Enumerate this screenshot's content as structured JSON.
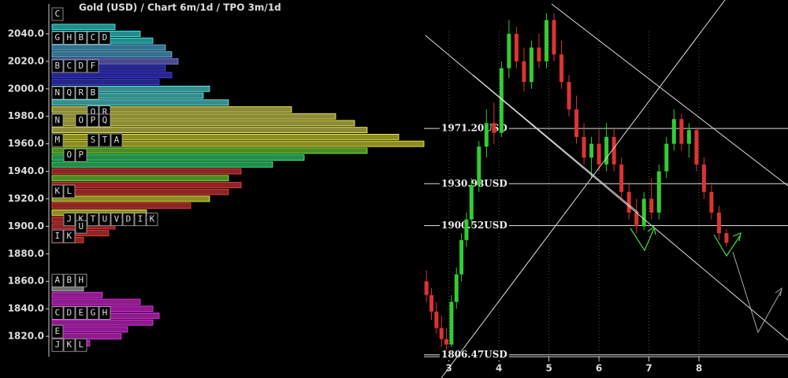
{
  "chart_data": {
    "type": "candlestick",
    "title": "Gold (USD) /  Chart 6m/1d / TPO 3m/1d",
    "ylim": [
      1804.0,
      2064.6
    ],
    "yticks": [
      {
        "value": 1820,
        "label": "1820.0"
      },
      {
        "value": 1840,
        "label": "1840.0"
      },
      {
        "value": 1860,
        "label": "1860.0"
      },
      {
        "value": 1880,
        "label": "1880.0"
      },
      {
        "value": 1900,
        "label": "1900.0"
      },
      {
        "value": 1920,
        "label": "1920.0"
      },
      {
        "value": 1940,
        "label": "1940.0"
      },
      {
        "value": 1960,
        "label": "1960.0"
      },
      {
        "value": 1980,
        "label": "1980.0"
      },
      {
        "value": 2000,
        "label": "2000.0"
      },
      {
        "value": 2020,
        "label": "2020.0"
      },
      {
        "value": 2040,
        "label": "2040.0"
      }
    ],
    "xlim": [
      2.5,
      9.78
    ],
    "xticks": [
      3,
      4,
      5,
      6,
      7,
      8
    ],
    "grid": true,
    "up_color": "#33cc33",
    "down_color": "#dd3333",
    "x": [
      2.55,
      2.65,
      2.75,
      2.85,
      2.95,
      3.05,
      3.15,
      3.25,
      3.35,
      3.45,
      3.6,
      3.75,
      3.9,
      4.05,
      4.2,
      4.35,
      4.5,
      4.65,
      4.8,
      4.95,
      5.1,
      5.25,
      5.4,
      5.55,
      5.7,
      5.85,
      6.0,
      6.15,
      6.3,
      6.45,
      6.6,
      6.75,
      6.9,
      7.05,
      7.2,
      7.35,
      7.5,
      7.65,
      7.8,
      7.95,
      8.1,
      8.25,
      8.4,
      8.55
    ],
    "open": [
      1860,
      1850,
      1838,
      1826,
      1818,
      1814,
      1845,
      1865,
      1890,
      1905,
      1930,
      1958,
      1975,
      1968,
      2015,
      2040,
      2020,
      2005,
      2030,
      2020,
      2050,
      2025,
      2005,
      1985,
      1965,
      1950,
      1960,
      1945,
      1965,
      1945,
      1925,
      1910,
      1900,
      1920,
      1910,
      1940,
      1960,
      1978,
      1960,
      1970,
      1945,
      1925,
      1910,
      1895
    ],
    "high": [
      1868,
      1855,
      1845,
      1835,
      1826,
      1850,
      1870,
      1895,
      1910,
      1935,
      1962,
      1985,
      1990,
      2020,
      2050,
      2045,
      2030,
      2035,
      2040,
      2055,
      2055,
      2035,
      2010,
      1995,
      1975,
      1965,
      1970,
      1975,
      1972,
      1950,
      1932,
      1920,
      1925,
      1935,
      1945,
      1965,
      1985,
      1982,
      1975,
      1972,
      1950,
      1930,
      1915,
      1898
    ],
    "low": [
      1845,
      1832,
      1822,
      1812,
      1810,
      1812,
      1840,
      1860,
      1885,
      1900,
      1925,
      1950,
      1960,
      1965,
      2008,
      2015,
      1998,
      2000,
      2015,
      2015,
      2020,
      2000,
      1980,
      1960,
      1945,
      1935,
      1940,
      1940,
      1940,
      1920,
      1905,
      1895,
      1897,
      1905,
      1905,
      1935,
      1955,
      1955,
      1950,
      1940,
      1920,
      1905,
      1890,
      1885
    ],
    "close": [
      1850,
      1838,
      1826,
      1818,
      1814,
      1845,
      1865,
      1890,
      1905,
      1930,
      1958,
      1975,
      1968,
      2015,
      2040,
      2020,
      2005,
      2030,
      2020,
      2050,
      2025,
      2005,
      1985,
      1965,
      1950,
      1960,
      1945,
      1965,
      1945,
      1925,
      1910,
      1900,
      1920,
      1910,
      1940,
      1960,
      1978,
      1960,
      1970,
      1945,
      1925,
      1910,
      1895,
      1888
    ],
    "levels": [
      {
        "value": 1971.2,
        "label": "1971.20USD"
      },
      {
        "value": 1930.98,
        "label": "1930.98USD"
      },
      {
        "value": 1900.52,
        "label": "1900.52USD"
      },
      {
        "value": 1806.47,
        "label": "1806.47USD"
      }
    ],
    "profile": {
      "prices": [
        2045,
        2040,
        2035,
        2030,
        2025,
        2020,
        2015,
        2010,
        2005,
        2000,
        1995,
        1990,
        1985,
        1980,
        1975,
        1970,
        1965,
        1960,
        1955,
        1950,
        1945,
        1940,
        1935,
        1930,
        1925,
        1920,
        1915,
        1910,
        1905,
        1900,
        1895,
        1890,
        1860,
        1855,
        1850,
        1845,
        1840,
        1835,
        1830,
        1825,
        1820,
        1815
      ],
      "counts": [
        10,
        14,
        16,
        18,
        19,
        20,
        18,
        19,
        17,
        25,
        24,
        28,
        38,
        45,
        48,
        50,
        55,
        59,
        50,
        40,
        35,
        30,
        28,
        30,
        28,
        25,
        22,
        15,
        12,
        10,
        9,
        5,
        3,
        5,
        8,
        14,
        16,
        17,
        16,
        12,
        11,
        6
      ],
      "colors": [
        "#44ffff",
        "#44ffff",
        "#44ffff",
        "#66ccff",
        "#66ccff",
        "#8888ff",
        "#4444ff",
        "#4444ff",
        "#4444ff",
        "#66ffff",
        "#66ffff",
        "#66ffff",
        "#ffff66",
        "#ffff66",
        "#ffff66",
        "#ffff66",
        "#ffff44",
        "#ffff44",
        "#88ff44",
        "#44ff88",
        "#44ff88",
        "#ff4444",
        "#88ff44",
        "#ff4444",
        "#ff4444",
        "#ffff44",
        "#ff4444",
        "#ffff44",
        "#ff4444",
        "#ff4444",
        "#ff4444",
        "#ff4444",
        "#cccccc",
        "#cccccc",
        "#ff33ff",
        "#ff33ff",
        "#ff33ff",
        "#ff33ff",
        "#ff33ff",
        "#ff33ff",
        "#ff33ff",
        "#ff33ff"
      ]
    },
    "tpo_rows": [
      {
        "price": 2054.3,
        "letters": "C"
      },
      {
        "price": 2037,
        "letters": "GHBCD"
      },
      {
        "price": 2016.5,
        "letters": "BCDF"
      },
      {
        "price": 1997,
        "letters": "NQRB"
      },
      {
        "price": 1983,
        "letters": "   QR"
      },
      {
        "price": 1977,
        "letters": "N OPQ"
      },
      {
        "price": 1962.6,
        "letters": "M  STA"
      },
      {
        "price": 1951.7,
        "letters": " OP"
      },
      {
        "price": 1925.4,
        "letters": "KL"
      },
      {
        "price": 1905,
        "letters": " JKTUVDIK"
      },
      {
        "price": 1899.6,
        "letters": "  U"
      },
      {
        "price": 1892.7,
        "letters": "IK"
      },
      {
        "price": 1860.6,
        "letters": "ABH"
      },
      {
        "price": 1837,
        "letters": "CDEGH"
      },
      {
        "price": 1823.4,
        "letters": "E"
      },
      {
        "price": 1813.6,
        "letters": "JKL"
      }
    ]
  }
}
